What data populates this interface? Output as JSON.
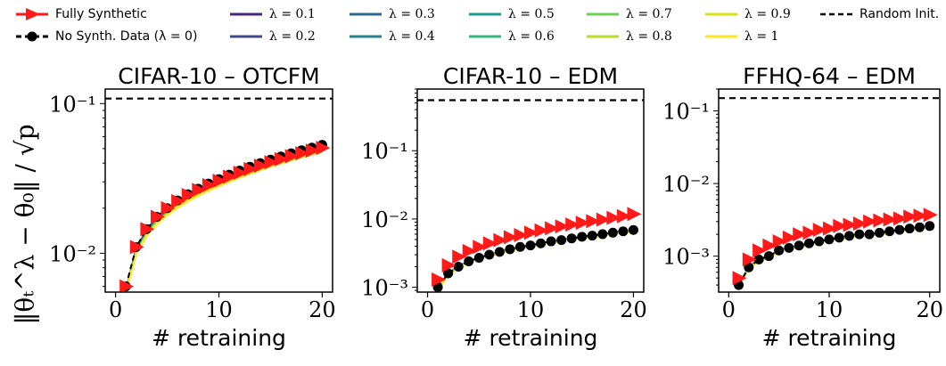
{
  "legend": {
    "fully_synthetic": "Fully Synthetic",
    "no_synth": "No Synth. Data (λ = 0)",
    "random_init": "Random Init.",
    "lambdas": [
      {
        "label": "λ = 0.1",
        "color": "#482878"
      },
      {
        "label": "λ = 0.2",
        "color": "#3e4989"
      },
      {
        "label": "λ = 0.3",
        "color": "#31688e"
      },
      {
        "label": "λ = 0.4",
        "color": "#26828e"
      },
      {
        "label": "λ = 0.5",
        "color": "#1f9e89"
      },
      {
        "label": "λ = 0.6",
        "color": "#35b779"
      },
      {
        "label": "λ = 0.7",
        "color": "#6ece58"
      },
      {
        "label": "λ = 0.8",
        "color": "#b5de2b"
      },
      {
        "label": "λ = 0.9",
        "color": "#d8e219"
      },
      {
        "label": "λ = 1",
        "color": "#fde725"
      }
    ]
  },
  "ylabel": "‖θₜ^λ − θ₀‖ / √p",
  "chart_data": [
    {
      "type": "line",
      "title": "CIFAR-10 – OTCFM",
      "xlabel": "# retraining",
      "xlim": [
        -1,
        21
      ],
      "xticks": [
        0,
        10,
        20
      ],
      "yscale": "log",
      "ylim": [
        0.0055,
        0.125
      ],
      "yticks": [
        {
          "v": 0.1,
          "label": "10⁻¹"
        },
        {
          "v": 0.01,
          "label": "10⁻²"
        }
      ],
      "random_init": 0.108,
      "x": [
        1,
        2,
        3,
        4,
        5,
        6,
        7,
        8,
        9,
        10,
        11,
        12,
        13,
        14,
        15,
        16,
        17,
        18,
        19,
        20
      ],
      "fully_synthetic": [
        0.006,
        0.011,
        0.0145,
        0.0175,
        0.02,
        0.0223,
        0.0245,
        0.0265,
        0.0285,
        0.0305,
        0.0325,
        0.0345,
        0.0365,
        0.0385,
        0.0405,
        0.0425,
        0.0445,
        0.0465,
        0.0485,
        0.0505
      ],
      "no_synth": [
        0.006,
        0.011,
        0.0145,
        0.0175,
        0.02,
        0.0225,
        0.0248,
        0.027,
        0.0292,
        0.0313,
        0.0335,
        0.0357,
        0.0378,
        0.04,
        0.0422,
        0.0443,
        0.0465,
        0.0487,
        0.0508,
        0.053
      ],
      "lambda_end": [
        0.052,
        0.0515,
        0.051,
        0.0505,
        0.05,
        0.0495,
        0.049,
        0.0485,
        0.048,
        0.0475
      ],
      "lambda_start": 0.0055
    },
    {
      "type": "line",
      "title": "CIFAR-10 – EDM",
      "xlabel": "# retraining",
      "xlim": [
        -1,
        21
      ],
      "xticks": [
        0,
        10,
        20
      ],
      "yscale": "log",
      "ylim": [
        0.00085,
        0.8
      ],
      "yticks": [
        {
          "v": 0.1,
          "label": "10⁻¹"
        },
        {
          "v": 0.01,
          "label": "10⁻²"
        },
        {
          "v": 0.001,
          "label": "10⁻³"
        }
      ],
      "random_init": 0.55,
      "x": [
        1,
        2,
        3,
        4,
        5,
        6,
        7,
        8,
        9,
        10,
        11,
        12,
        13,
        14,
        15,
        16,
        17,
        18,
        19,
        20
      ],
      "fully_synthetic": [
        0.0013,
        0.0021,
        0.0028,
        0.0034,
        0.0039,
        0.0044,
        0.0049,
        0.0054,
        0.0058,
        0.0063,
        0.0068,
        0.0073,
        0.0078,
        0.0083,
        0.0088,
        0.0093,
        0.0098,
        0.0104,
        0.011,
        0.0118
      ],
      "no_synth": [
        0.001,
        0.0016,
        0.002,
        0.0024,
        0.0027,
        0.003,
        0.0033,
        0.0036,
        0.0039,
        0.0041,
        0.0044,
        0.0047,
        0.0049,
        0.0052,
        0.0055,
        0.0057,
        0.006,
        0.0063,
        0.0066,
        0.0069
      ],
      "lambda_end": [
        0.0069,
        0.0069,
        0.0068,
        0.0068,
        0.0068,
        0.0067,
        0.0067,
        0.0067,
        0.0066,
        0.0066
      ],
      "lambda_start": 0.0009
    },
    {
      "type": "line",
      "title": "FFHQ-64 – EDM",
      "xlabel": "# retraining",
      "xlim": [
        -1,
        21
      ],
      "xticks": [
        0,
        10,
        20
      ],
      "yscale": "log",
      "ylim": [
        0.00032,
        0.2
      ],
      "yticks": [
        {
          "v": 0.1,
          "label": "10⁻¹"
        },
        {
          "v": 0.01,
          "label": "10⁻²"
        },
        {
          "v": 0.001,
          "label": "10⁻³"
        }
      ],
      "random_init": 0.15,
      "x": [
        1,
        2,
        3,
        4,
        5,
        6,
        7,
        8,
        9,
        10,
        11,
        12,
        13,
        14,
        15,
        16,
        17,
        18,
        19,
        20
      ],
      "fully_synthetic": [
        0.0005,
        0.0009,
        0.0012,
        0.0014,
        0.0016,
        0.0018,
        0.002,
        0.0021,
        0.0023,
        0.0024,
        0.0026,
        0.0027,
        0.0028,
        0.003,
        0.0031,
        0.0032,
        0.0033,
        0.0035,
        0.0036,
        0.0037
      ],
      "no_synth": [
        0.0004,
        0.0007,
        0.0009,
        0.001,
        0.0012,
        0.0013,
        0.0014,
        0.0015,
        0.0016,
        0.0017,
        0.0018,
        0.0019,
        0.002,
        0.002,
        0.0021,
        0.0022,
        0.0023,
        0.0024,
        0.0025,
        0.0026
      ],
      "lambda_end": [
        0.0026,
        0.0026,
        0.0026,
        0.0026,
        0.0025,
        0.0025,
        0.0025,
        0.0025,
        0.0025,
        0.0025
      ],
      "lambda_start": 0.0004
    }
  ]
}
